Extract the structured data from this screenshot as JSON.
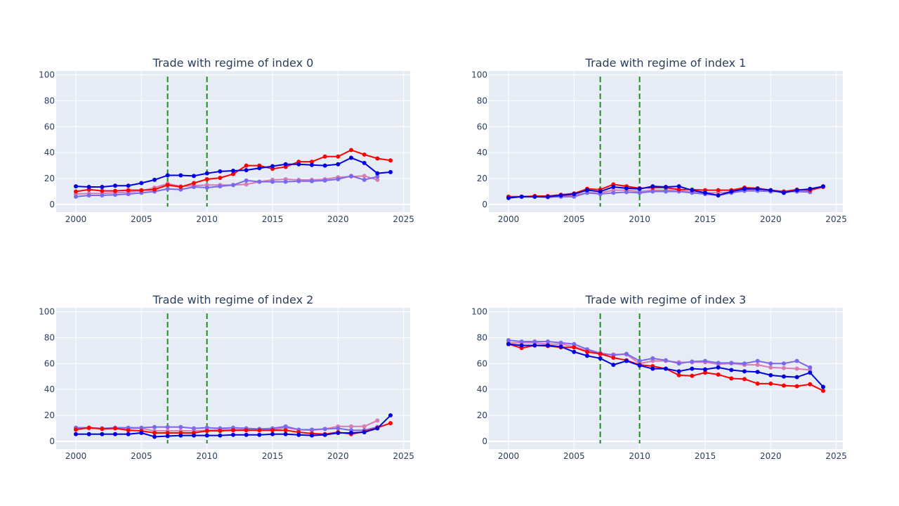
{
  "colors": {
    "plot_bg": "#e5ecf6",
    "grid": "#ffffff",
    "vline": "#228b22",
    "series": [
      "#0000e0",
      "#ff0000",
      "#d97ab3",
      "#7b68ee"
    ]
  },
  "chart_data": [
    {
      "type": "line",
      "title": "Trade with regime of index 0",
      "xlim": [
        1998.5,
        2025.5
      ],
      "ylim": [
        -6,
        103
      ],
      "xticks": [
        2000,
        2005,
        2010,
        2015,
        2020,
        2025
      ],
      "yticks": [
        0,
        20,
        40,
        60,
        80,
        100
      ],
      "vlines": [
        2007,
        2010
      ],
      "x": [
        2000,
        2001,
        2002,
        2003,
        2004,
        2005,
        2006,
        2007,
        2008,
        2009,
        2010,
        2011,
        2012,
        2013,
        2014,
        2015,
        2016,
        2017,
        2018,
        2019,
        2020,
        2021,
        2022,
        2023,
        2024
      ],
      "series": [
        {
          "values": [
            14,
            13.5,
            13.5,
            14.5,
            14.5,
            16.5,
            19,
            22.5,
            22.5,
            22,
            24,
            25.5,
            26,
            26.5,
            28,
            29.5,
            31,
            31,
            30.5,
            30,
            31,
            36,
            32,
            24,
            25
          ]
        },
        {
          "values": [
            10,
            11.5,
            10.5,
            10.5,
            11,
            11,
            11.5,
            15,
            13.5,
            16.5,
            19.5,
            20.5,
            23.5,
            30,
            30,
            27.5,
            29,
            33,
            33,
            37,
            37,
            42,
            38.5,
            35.5,
            34
          ]
        },
        {
          "values": [
            8,
            8.5,
            8.5,
            9,
            9.5,
            10.5,
            13,
            16,
            14,
            14.5,
            15,
            15,
            15,
            15.5,
            17.5,
            19,
            19.5,
            19,
            19,
            19.5,
            21,
            21.5,
            22,
            19,
            null
          ]
        },
        {
          "values": [
            6,
            7,
            7,
            7.5,
            8,
            9,
            10,
            12,
            11.5,
            13.5,
            13,
            14,
            15,
            18.5,
            17.5,
            17.5,
            17.5,
            18,
            18,
            18.5,
            19.5,
            22,
            19,
            21.5,
            null
          ]
        }
      ]
    },
    {
      "type": "line",
      "title": "Trade with regime of index 1",
      "xlim": [
        1998.5,
        2025.5
      ],
      "ylim": [
        -6,
        103
      ],
      "xticks": [
        2000,
        2005,
        2010,
        2015,
        2020,
        2025
      ],
      "yticks": [
        0,
        20,
        40,
        60,
        80,
        100
      ],
      "vlines": [
        2007,
        2010
      ],
      "x": [
        2000,
        2001,
        2002,
        2003,
        2004,
        2005,
        2006,
        2007,
        2008,
        2009,
        2010,
        2011,
        2012,
        2013,
        2014,
        2015,
        2016,
        2017,
        2018,
        2019,
        2020,
        2021,
        2022,
        2023,
        2024
      ],
      "series": [
        {
          "values": [
            5,
            6,
            6,
            6,
            7,
            8,
            11,
            10,
            13.5,
            12.5,
            12,
            14,
            13.5,
            14,
            11,
            9,
            7,
            10,
            12,
            12,
            11,
            9,
            11,
            12,
            14
          ]
        },
        {
          "values": [
            6,
            6,
            6.5,
            6.5,
            7.5,
            8.5,
            12,
            11.5,
            15.5,
            14,
            12.5,
            13,
            13,
            11.5,
            11.5,
            11,
            11,
            11,
            13,
            12.5,
            11,
            10,
            11.5,
            11,
            13.5
          ]
        },
        {
          "values": [
            6,
            6,
            6,
            6,
            6.5,
            7,
            9,
            9,
            11,
            11,
            10,
            11,
            11,
            10.5,
            9.5,
            9,
            9,
            9.5,
            11,
            11,
            10.5,
            10,
            10,
            10,
            null
          ]
        },
        {
          "values": [
            6,
            6,
            6,
            5.5,
            6,
            6,
            9,
            8,
            9,
            9.5,
            9,
            10,
            10,
            10,
            9,
            8,
            7,
            9,
            10.5,
            10.5,
            10,
            10,
            10,
            9.5,
            null
          ]
        }
      ]
    },
    {
      "type": "line",
      "title": "Trade with regime of index 2",
      "xlim": [
        1998.5,
        2025.5
      ],
      "ylim": [
        -6,
        103
      ],
      "xticks": [
        2000,
        2005,
        2010,
        2015,
        2020,
        2025
      ],
      "yticks": [
        0,
        20,
        40,
        60,
        80,
        100
      ],
      "vlines": [
        2007,
        2010
      ],
      "x": [
        2000,
        2001,
        2002,
        2003,
        2004,
        2005,
        2006,
        2007,
        2008,
        2009,
        2010,
        2011,
        2012,
        2013,
        2014,
        2015,
        2016,
        2017,
        2018,
        2019,
        2020,
        2021,
        2022,
        2023,
        2024
      ],
      "series": [
        {
          "values": [
            5.5,
            5.5,
            5.5,
            5.5,
            5.5,
            6.5,
            3.5,
            4,
            4.5,
            4.5,
            4.5,
            4.5,
            5,
            5,
            5,
            5.5,
            5.5,
            5,
            4.5,
            5,
            6.5,
            6.5,
            7,
            10,
            20
          ]
        },
        {
          "values": [
            9,
            10.5,
            9.5,
            10,
            8.5,
            8,
            6.5,
            6.5,
            6.5,
            6.5,
            8,
            8,
            8.5,
            8.5,
            8.5,
            8.5,
            8.5,
            7,
            6,
            5.5,
            7,
            5.5,
            7.5,
            10.5,
            14
          ]
        },
        {
          "values": [
            10,
            10,
            10,
            10,
            10,
            10,
            8,
            8,
            8,
            8,
            8.5,
            9,
            9,
            9,
            9,
            9,
            10.5,
            9,
            8.5,
            9.5,
            11.5,
            11.5,
            11.5,
            16,
            null
          ]
        },
        {
          "values": [
            10.5,
            10.5,
            10,
            10.5,
            10.5,
            10.5,
            11,
            11,
            11,
            10,
            10.5,
            10,
            10.5,
            10,
            9.5,
            10,
            11.5,
            9,
            9,
            9.5,
            10,
            8.5,
            8.5,
            11,
            null
          ]
        }
      ]
    },
    {
      "type": "line",
      "title": "Trade with regime of index 3",
      "xlim": [
        1998.5,
        2025.5
      ],
      "ylim": [
        -6,
        103
      ],
      "xticks": [
        2000,
        2005,
        2010,
        2015,
        2020,
        2025
      ],
      "yticks": [
        0,
        20,
        40,
        60,
        80,
        100
      ],
      "vlines": [
        2007,
        2010
      ],
      "x": [
        2000,
        2001,
        2002,
        2003,
        2004,
        2005,
        2006,
        2007,
        2008,
        2009,
        2010,
        2011,
        2012,
        2013,
        2014,
        2015,
        2016,
        2017,
        2018,
        2019,
        2020,
        2021,
        2022,
        2023,
        2024
      ],
      "series": [
        {
          "values": [
            75,
            74,
            74,
            74,
            73,
            69,
            66,
            64,
            59,
            62,
            58.5,
            56,
            56,
            54,
            56,
            55.5,
            57,
            55,
            54,
            53.5,
            51,
            50,
            49.5,
            53,
            42
          ]
        },
        {
          "values": [
            75,
            72,
            74,
            73.5,
            72.5,
            72.5,
            69,
            67.5,
            64.5,
            62.5,
            59,
            58,
            56,
            51,
            50.5,
            53,
            51.5,
            48.5,
            48,
            44.5,
            44.5,
            43,
            42.5,
            44,
            39
          ]
        },
        {
          "values": [
            76,
            76,
            76,
            75,
            75,
            73,
            70,
            67,
            67,
            67,
            60,
            62,
            62,
            61,
            61,
            61,
            59.5,
            60,
            59,
            59,
            57,
            56.5,
            56,
            55,
            null
          ]
        },
        {
          "values": [
            78,
            77,
            77,
            77,
            76,
            75,
            71,
            68,
            66.5,
            67.5,
            62,
            64,
            62.5,
            60,
            61.5,
            62,
            60.5,
            60.5,
            60,
            62,
            60,
            60,
            62,
            57,
            null
          ]
        }
      ]
    }
  ]
}
